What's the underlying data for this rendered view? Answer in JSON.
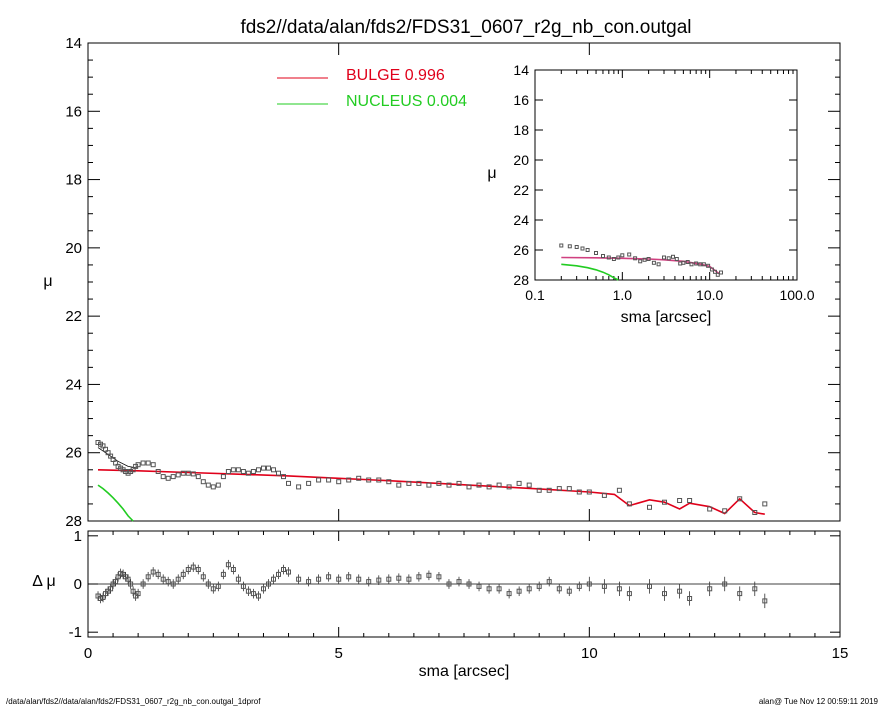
{
  "title": "fds2//data/alan/fds2/FDS31_0607_r2g_nb_con.outgal",
  "footer_left": "/data/alan/fds2//data/alan/fds2/FDS31_0607_r2g_nb_con.outgal_1dprof",
  "footer_right": "alan@  Tue Nov 12 00:59:11 2019",
  "colors": {
    "bulge": "#e0001a",
    "bulge_inset": "#d04080",
    "nucleus": "#22cc22",
    "data": "#555555",
    "axes": "#000000"
  },
  "chart_data": [
    {
      "id": "main",
      "type": "scatter",
      "xlabel": "sma [arcsec]",
      "ylabel": "μ",
      "xlim": [
        0,
        15
      ],
      "ylim": [
        28,
        14
      ],
      "xticks": [
        0,
        5,
        10,
        15
      ],
      "yticks": [
        14,
        16,
        18,
        20,
        22,
        24,
        26,
        28
      ],
      "legend_position": "top-center",
      "legend": [
        {
          "name": "BULGE",
          "value": "0.996",
          "color": "#e0001a"
        },
        {
          "name": "NUCLEUS",
          "value": "0.004",
          "color": "#22cc22"
        }
      ],
      "series": [
        {
          "name": "BULGE",
          "style": "line",
          "color": "#e0001a",
          "x": [
            0.2,
            1,
            2,
            3,
            4,
            5,
            6,
            7,
            8,
            9,
            10,
            10.5,
            10.8,
            11.2,
            11.5,
            11.8,
            12.0,
            12.4,
            12.7,
            13.0,
            13.3,
            13.5
          ],
          "y": [
            26.5,
            26.53,
            26.58,
            26.63,
            26.68,
            26.75,
            26.82,
            26.9,
            26.98,
            27.06,
            27.15,
            27.22,
            27.55,
            27.38,
            27.45,
            27.65,
            27.48,
            27.58,
            27.78,
            27.35,
            27.75,
            27.8
          ]
        },
        {
          "name": "NUCLEUS",
          "style": "line",
          "color": "#22cc22",
          "x": [
            0.2,
            0.3,
            0.4,
            0.5,
            0.6,
            0.7,
            0.8,
            0.9
          ],
          "y": [
            26.95,
            27.05,
            27.18,
            27.32,
            27.48,
            27.65,
            27.85,
            28.0
          ]
        },
        {
          "name": "",
          "style": "thin-line",
          "color": "#000000",
          "x": [
            0.2,
            0.4,
            0.6,
            0.8,
            1.0
          ],
          "y": [
            25.85,
            26.05,
            26.25,
            26.4,
            26.45
          ]
        },
        {
          "name": "",
          "style": "squares",
          "color": "#555555",
          "x": [
            0.2,
            0.25,
            0.3,
            0.35,
            0.4,
            0.45,
            0.5,
            0.55,
            0.6,
            0.65,
            0.7,
            0.75,
            0.8,
            0.85,
            0.9,
            0.95,
            1.0,
            1.1,
            1.2,
            1.3,
            1.4,
            1.5,
            1.6,
            1.7,
            1.8,
            1.9,
            2.0,
            2.1,
            2.2,
            2.3,
            2.4,
            2.5,
            2.6,
            2.7,
            2.8,
            2.9,
            3.0,
            3.1,
            3.2,
            3.3,
            3.4,
            3.5,
            3.6,
            3.7,
            3.8,
            3.9,
            4.0,
            4.2,
            4.4,
            4.6,
            4.8,
            5.0,
            5.2,
            5.4,
            5.6,
            5.8,
            6.0,
            6.2,
            6.4,
            6.6,
            6.8,
            7.0,
            7.2,
            7.4,
            7.6,
            7.8,
            8.0,
            8.2,
            8.4,
            8.6,
            8.8,
            9.0,
            9.2,
            9.4,
            9.6,
            9.8,
            10.0,
            10.3,
            10.6,
            10.8,
            11.2,
            11.5,
            11.8,
            12.0,
            12.4,
            12.7,
            13.0,
            13.3,
            13.5
          ],
          "y": [
            25.7,
            25.75,
            25.8,
            25.9,
            26.0,
            26.1,
            26.2,
            26.3,
            26.4,
            26.45,
            26.5,
            26.55,
            26.6,
            26.55,
            26.5,
            26.4,
            26.35,
            26.3,
            26.3,
            26.35,
            26.55,
            26.7,
            26.75,
            26.7,
            26.65,
            26.6,
            26.6,
            26.62,
            26.7,
            26.85,
            26.95,
            27.0,
            26.95,
            26.7,
            26.55,
            26.5,
            26.5,
            26.55,
            26.6,
            26.55,
            26.5,
            26.45,
            26.45,
            26.5,
            26.6,
            26.7,
            26.9,
            27.0,
            26.9,
            26.8,
            26.8,
            26.85,
            26.8,
            26.75,
            26.8,
            26.8,
            26.85,
            26.95,
            26.9,
            26.9,
            26.95,
            26.9,
            26.95,
            26.9,
            27.0,
            26.95,
            27.0,
            26.95,
            27.0,
            26.9,
            26.95,
            27.1,
            27.1,
            27.05,
            27.05,
            27.15,
            27.15,
            27.25,
            27.1,
            27.5,
            27.6,
            27.45,
            27.4,
            27.4,
            27.65,
            27.7,
            27.35,
            27.75,
            27.5
          ]
        }
      ]
    },
    {
      "id": "residual",
      "type": "scatter",
      "ylabel": "Δ μ",
      "xlim": [
        0,
        15
      ],
      "ylim": [
        -1.1,
        1.1
      ],
      "yticks": [
        1,
        0,
        -1
      ],
      "zero_line": true,
      "series": [
        {
          "name": "",
          "style": "squares-errorbars",
          "color": "#555555",
          "x": [
            0.2,
            0.25,
            0.3,
            0.35,
            0.4,
            0.45,
            0.5,
            0.55,
            0.6,
            0.65,
            0.7,
            0.75,
            0.8,
            0.85,
            0.9,
            0.95,
            1.0,
            1.1,
            1.2,
            1.3,
            1.4,
            1.5,
            1.6,
            1.7,
            1.8,
            1.9,
            2.0,
            2.1,
            2.2,
            2.3,
            2.4,
            2.5,
            2.6,
            2.7,
            2.8,
            2.9,
            3.0,
            3.1,
            3.2,
            3.3,
            3.4,
            3.5,
            3.6,
            3.7,
            3.8,
            3.9,
            4.0,
            4.2,
            4.4,
            4.6,
            4.8,
            5.0,
            5.2,
            5.4,
            5.6,
            5.8,
            6.0,
            6.2,
            6.4,
            6.6,
            6.8,
            7.0,
            7.2,
            7.4,
            7.6,
            7.8,
            8.0,
            8.2,
            8.4,
            8.6,
            8.8,
            9.0,
            9.2,
            9.4,
            9.6,
            9.8,
            10.0,
            10.3,
            10.6,
            10.8,
            11.2,
            11.5,
            11.8,
            12.0,
            12.4,
            12.7,
            13.0,
            13.3,
            13.5
          ],
          "y": [
            -0.25,
            -0.3,
            -0.28,
            -0.2,
            -0.15,
            -0.1,
            0.0,
            0.05,
            0.15,
            0.22,
            0.2,
            0.15,
            0.1,
            0.0,
            -0.15,
            -0.25,
            -0.2,
            0.0,
            0.15,
            0.25,
            0.2,
            0.1,
            0.05,
            0.0,
            0.1,
            0.2,
            0.3,
            0.35,
            0.3,
            0.15,
            0.0,
            -0.1,
            -0.05,
            0.2,
            0.4,
            0.3,
            0.1,
            -0.05,
            -0.15,
            -0.2,
            -0.25,
            -0.1,
            0.0,
            0.1,
            0.2,
            0.3,
            0.25,
            0.1,
            0.05,
            0.1,
            0.15,
            0.1,
            0.15,
            0.1,
            0.05,
            0.08,
            0.1,
            0.12,
            0.1,
            0.15,
            0.18,
            0.15,
            0.0,
            0.05,
            0.0,
            -0.05,
            -0.1,
            -0.1,
            -0.2,
            -0.15,
            -0.1,
            -0.05,
            0.05,
            -0.1,
            -0.15,
            -0.05,
            0.0,
            -0.05,
            -0.1,
            -0.2,
            -0.05,
            -0.2,
            -0.15,
            -0.3,
            -0.1,
            0.0,
            -0.2,
            -0.1,
            -0.35
          ],
          "err": [
            0.1,
            0.1,
            0.1,
            0.1,
            0.1,
            0.1,
            0.1,
            0.1,
            0.1,
            0.1,
            0.1,
            0.1,
            0.1,
            0.1,
            0.1,
            0.1,
            0.1,
            0.1,
            0.1,
            0.1,
            0.1,
            0.1,
            0.1,
            0.1,
            0.1,
            0.1,
            0.1,
            0.1,
            0.1,
            0.1,
            0.1,
            0.1,
            0.1,
            0.1,
            0.1,
            0.1,
            0.1,
            0.1,
            0.1,
            0.1,
            0.1,
            0.1,
            0.1,
            0.1,
            0.1,
            0.1,
            0.1,
            0.1,
            0.1,
            0.1,
            0.1,
            0.1,
            0.1,
            0.1,
            0.1,
            0.1,
            0.1,
            0.1,
            0.1,
            0.1,
            0.1,
            0.1,
            0.1,
            0.1,
            0.1,
            0.1,
            0.1,
            0.1,
            0.1,
            0.1,
            0.1,
            0.1,
            0.1,
            0.1,
            0.1,
            0.1,
            0.15,
            0.15,
            0.15,
            0.15,
            0.15,
            0.15,
            0.15,
            0.15,
            0.15,
            0.15,
            0.15,
            0.15,
            0.15
          ]
        }
      ]
    },
    {
      "id": "inset",
      "type": "scatter",
      "xlabel": "sma [arcsec]",
      "ylabel": "μ",
      "xscale": "log",
      "xlim": [
        0.1,
        100
      ],
      "ylim": [
        28,
        14
      ],
      "xticks": [
        0.1,
        1.0,
        10.0,
        100.0
      ],
      "xtick_labels": [
        "0.1",
        "1.0",
        "10.0",
        "100.0"
      ],
      "yticks": [
        14,
        16,
        18,
        20,
        22,
        24,
        26,
        28
      ],
      "series": [
        {
          "name": "BULGE",
          "style": "line",
          "color": "#d04080",
          "x": [
            0.2,
            0.5,
            1,
            2,
            3,
            5,
            8,
            10,
            13
          ],
          "y": [
            26.5,
            26.52,
            26.55,
            26.6,
            26.65,
            26.75,
            26.95,
            27.1,
            27.6
          ]
        },
        {
          "name": "NUCLEUS",
          "style": "line",
          "color": "#22cc22",
          "x": [
            0.2,
            0.3,
            0.4,
            0.5,
            0.6,
            0.7,
            0.8,
            0.9
          ],
          "y": [
            26.95,
            27.05,
            27.18,
            27.32,
            27.48,
            27.65,
            27.85,
            28.0
          ]
        },
        {
          "name": "",
          "style": "squares",
          "color": "#555555",
          "x": [
            0.2,
            0.25,
            0.3,
            0.35,
            0.4,
            0.5,
            0.6,
            0.7,
            0.8,
            0.9,
            1.0,
            1.2,
            1.4,
            1.6,
            1.8,
            2.0,
            2.3,
            2.6,
            3.0,
            3.4,
            3.8,
            4.2,
            4.6,
            5.0,
            5.6,
            6.2,
            7.0,
            7.8,
            8.6,
            9.6,
            10.6,
            11.5,
            12.4,
            13.5
          ],
          "y": [
            25.7,
            25.75,
            25.8,
            25.9,
            26.0,
            26.2,
            26.4,
            26.5,
            26.6,
            26.5,
            26.35,
            26.3,
            26.55,
            26.75,
            26.65,
            26.6,
            26.85,
            26.95,
            26.5,
            26.55,
            26.45,
            26.6,
            26.9,
            26.85,
            26.8,
            26.95,
            26.9,
            26.95,
            26.95,
            27.05,
            27.3,
            27.45,
            27.65,
            27.5
          ]
        }
      ]
    }
  ]
}
